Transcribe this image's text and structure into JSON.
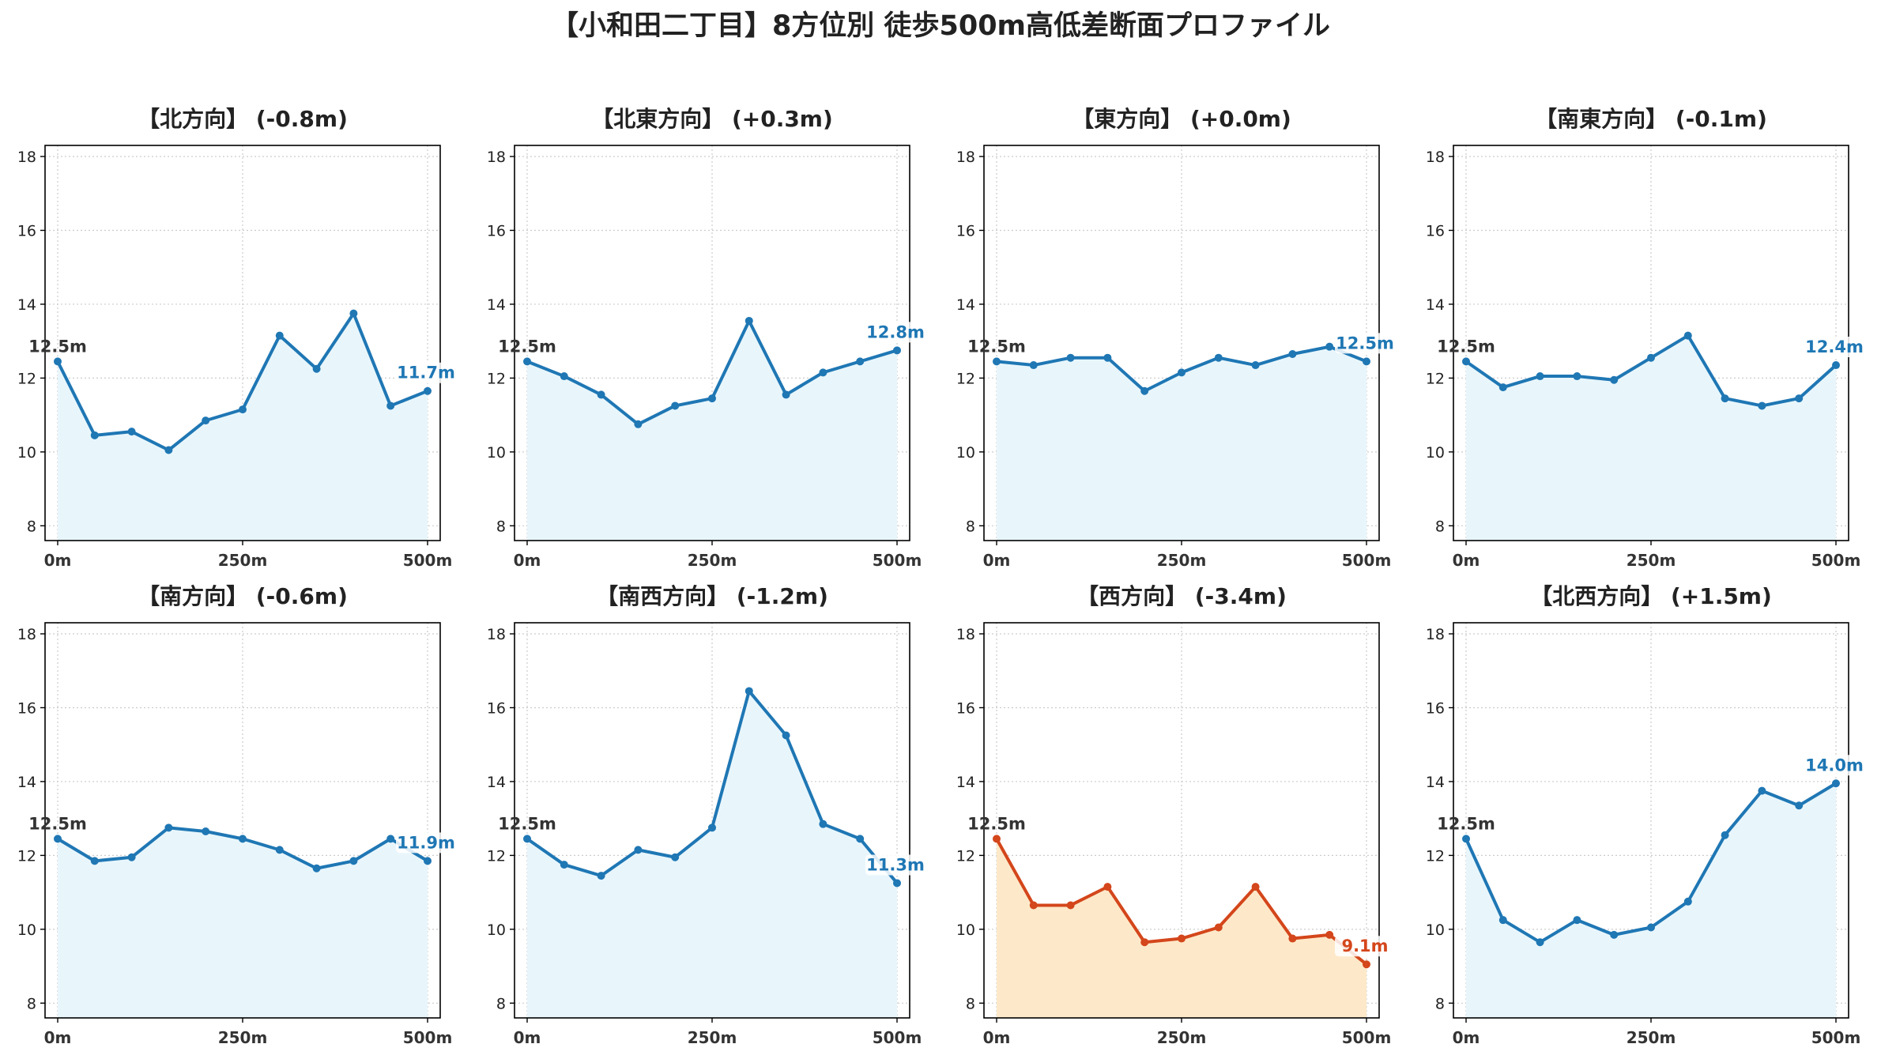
{
  "title": "【小和田二丁目】8方位別 徒歩500m高低差断面プロファイル",
  "colors": {
    "normal_line": "#1f77b4",
    "normal_fill": "#e8f6fc",
    "descent_line": "#d4461b",
    "descent_fill": "#fde9c9",
    "grid": "#cccccc"
  },
  "chart_data": [
    {
      "type": "area",
      "title": "【北方向】 (-0.8m)",
      "highlight": false,
      "x": [
        0,
        50,
        100,
        150,
        200,
        250,
        300,
        350,
        400,
        450,
        500
      ],
      "y": [
        12.45,
        10.45,
        10.55,
        10.05,
        10.85,
        11.15,
        13.15,
        12.25,
        13.75,
        11.25,
        11.65
      ],
      "start_label": "12.5m",
      "end_label": "11.7m",
      "ylim": [
        7.6,
        18.3
      ],
      "yticks": [
        8,
        10,
        12,
        14,
        16,
        18
      ],
      "xticks": [
        0,
        250,
        500
      ],
      "xtick_labels": [
        "0m",
        "250m",
        "500m"
      ],
      "grid": true
    },
    {
      "type": "area",
      "title": "【北東方向】 (+0.3m)",
      "highlight": false,
      "x": [
        0,
        50,
        100,
        150,
        200,
        250,
        300,
        350,
        400,
        450,
        500
      ],
      "y": [
        12.45,
        12.05,
        11.55,
        10.75,
        11.25,
        11.45,
        13.55,
        11.55,
        12.15,
        12.45,
        12.75
      ],
      "start_label": "12.5m",
      "end_label": "12.8m",
      "ylim": [
        7.6,
        18.3
      ],
      "yticks": [
        8,
        10,
        12,
        14,
        16,
        18
      ],
      "xticks": [
        0,
        250,
        500
      ],
      "xtick_labels": [
        "0m",
        "250m",
        "500m"
      ],
      "grid": true
    },
    {
      "type": "area",
      "title": "【東方向】 (+0.0m)",
      "highlight": false,
      "x": [
        0,
        50,
        100,
        150,
        200,
        250,
        300,
        350,
        400,
        450,
        500
      ],
      "y": [
        12.45,
        12.35,
        12.55,
        12.55,
        11.65,
        12.15,
        12.55,
        12.35,
        12.65,
        12.85,
        12.45
      ],
      "start_label": "12.5m",
      "end_label": "12.5m",
      "ylim": [
        7.6,
        18.3
      ],
      "yticks": [
        8,
        10,
        12,
        14,
        16,
        18
      ],
      "xticks": [
        0,
        250,
        500
      ],
      "xtick_labels": [
        "0m",
        "250m",
        "500m"
      ],
      "grid": true
    },
    {
      "type": "area",
      "title": "【南東方向】 (-0.1m)",
      "highlight": false,
      "x": [
        0,
        50,
        100,
        150,
        200,
        250,
        300,
        350,
        400,
        450,
        500
      ],
      "y": [
        12.45,
        11.75,
        12.05,
        12.05,
        11.95,
        12.55,
        13.15,
        11.45,
        11.25,
        11.45,
        12.35
      ],
      "start_label": "12.5m",
      "end_label": "12.4m",
      "ylim": [
        7.6,
        18.3
      ],
      "yticks": [
        8,
        10,
        12,
        14,
        16,
        18
      ],
      "xticks": [
        0,
        250,
        500
      ],
      "xtick_labels": [
        "0m",
        "250m",
        "500m"
      ],
      "grid": true
    },
    {
      "type": "area",
      "title": "【南方向】 (-0.6m)",
      "highlight": false,
      "x": [
        0,
        50,
        100,
        150,
        200,
        250,
        300,
        350,
        400,
        450,
        500
      ],
      "y": [
        12.45,
        11.85,
        11.95,
        12.75,
        12.65,
        12.45,
        12.15,
        11.65,
        11.85,
        12.45,
        11.85
      ],
      "start_label": "12.5m",
      "end_label": "11.9m",
      "ylim": [
        7.6,
        18.3
      ],
      "yticks": [
        8,
        10,
        12,
        14,
        16,
        18
      ],
      "xticks": [
        0,
        250,
        500
      ],
      "xtick_labels": [
        "0m",
        "250m",
        "500m"
      ],
      "grid": true
    },
    {
      "type": "area",
      "title": "【南西方向】 (-1.2m)",
      "highlight": false,
      "x": [
        0,
        50,
        100,
        150,
        200,
        250,
        300,
        350,
        400,
        450,
        500
      ],
      "y": [
        12.45,
        11.75,
        11.45,
        12.15,
        11.95,
        12.75,
        16.45,
        15.25,
        12.85,
        12.45,
        11.25
      ],
      "start_label": "12.5m",
      "end_label": "11.3m",
      "ylim": [
        7.6,
        18.3
      ],
      "yticks": [
        8,
        10,
        12,
        14,
        16,
        18
      ],
      "xticks": [
        0,
        250,
        500
      ],
      "xtick_labels": [
        "0m",
        "250m",
        "500m"
      ],
      "grid": true
    },
    {
      "type": "area",
      "title": "【西方向】 (-3.4m)",
      "highlight": true,
      "x": [
        0,
        50,
        100,
        150,
        200,
        250,
        300,
        350,
        400,
        450,
        500
      ],
      "y": [
        12.45,
        10.65,
        10.65,
        11.15,
        9.65,
        9.75,
        10.05,
        11.15,
        9.75,
        9.85,
        9.05
      ],
      "start_label": "12.5m",
      "end_label": "9.1m",
      "ylim": [
        7.6,
        18.3
      ],
      "yticks": [
        8,
        10,
        12,
        14,
        16,
        18
      ],
      "xticks": [
        0,
        250,
        500
      ],
      "xtick_labels": [
        "0m",
        "250m",
        "500m"
      ],
      "grid": true
    },
    {
      "type": "area",
      "title": "【北西方向】 (+1.5m)",
      "highlight": false,
      "x": [
        0,
        50,
        100,
        150,
        200,
        250,
        300,
        350,
        400,
        450,
        500
      ],
      "y": [
        12.45,
        10.25,
        9.65,
        10.25,
        9.85,
        10.05,
        10.75,
        12.55,
        13.75,
        13.35,
        13.95
      ],
      "start_label": "12.5m",
      "end_label": "14.0m",
      "ylim": [
        7.6,
        18.3
      ],
      "yticks": [
        8,
        10,
        12,
        14,
        16,
        18
      ],
      "xticks": [
        0,
        250,
        500
      ],
      "xtick_labels": [
        "0m",
        "250m",
        "500m"
      ],
      "grid": true
    }
  ]
}
